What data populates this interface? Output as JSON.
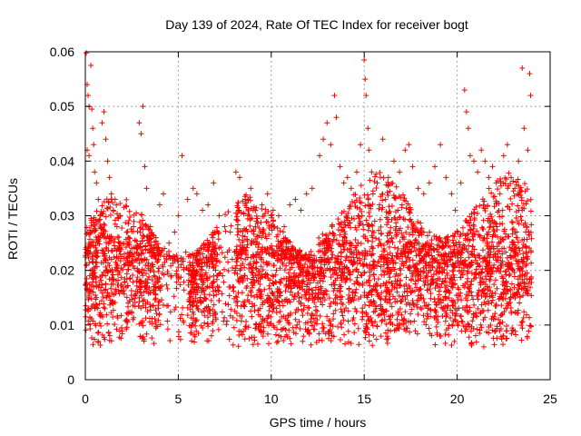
{
  "chart_data": {
    "type": "scatter",
    "title": "Day 139 of 2024, Rate Of TEC Index for receiver bogt",
    "xlabel": "GPS time / hours",
    "ylabel": "ROTI / TECUs",
    "xlim": [
      0,
      25
    ],
    "ylim": [
      0,
      0.06
    ],
    "xticks": [
      "0",
      "5",
      "10",
      "15",
      "20",
      "25"
    ],
    "yticks": [
      "0",
      "0.01",
      "0.02",
      "0.03",
      "0.04",
      "0.05",
      "0.06"
    ],
    "grid": true,
    "marker": "+",
    "color": "#ff0000",
    "series": [
      {
        "points": [
          [
            0.05,
            0.0598
          ],
          [
            0.1,
            0.054
          ],
          [
            0.15,
            0.052
          ],
          [
            0.2,
            0.05
          ],
          [
            0.3,
            0.0575
          ],
          [
            0.35,
            0.0495
          ],
          [
            0.4,
            0.046
          ],
          [
            0.1,
            0.042
          ],
          [
            0.2,
            0.041
          ],
          [
            0.45,
            0.043
          ],
          [
            0.5,
            0.038
          ],
          [
            0.6,
            0.036
          ],
          [
            0.7,
            0.033
          ],
          [
            0.8,
            0.03
          ],
          [
            0.9,
            0.047
          ],
          [
            1.0,
            0.049
          ],
          [
            1.1,
            0.044
          ],
          [
            1.2,
            0.04
          ],
          [
            1.3,
            0.037
          ],
          [
            1.4,
            0.034
          ],
          [
            1.5,
            0.031
          ],
          [
            1.6,
            0.033
          ],
          [
            1.7,
            0.028
          ],
          [
            1.9,
            0.025
          ],
          [
            2.1,
            0.023
          ],
          [
            2.3,
            0.026
          ],
          [
            2.5,
            0.024
          ],
          [
            2.9,
            0.047
          ],
          [
            3.0,
            0.045
          ],
          [
            3.1,
            0.05
          ],
          [
            3.2,
            0.039
          ],
          [
            3.3,
            0.035
          ],
          [
            3.5,
            0.028
          ],
          [
            3.8,
            0.026
          ],
          [
            4.0,
            0.032
          ],
          [
            4.2,
            0.034
          ],
          [
            4.5,
            0.025
          ],
          [
            4.8,
            0.027
          ],
          [
            5.0,
            0.03
          ],
          [
            5.2,
            0.041
          ],
          [
            5.5,
            0.033
          ],
          [
            5.8,
            0.035
          ],
          [
            6.0,
            0.034
          ],
          [
            6.3,
            0.031
          ],
          [
            6.6,
            0.032
          ],
          [
            6.9,
            0.036
          ],
          [
            7.2,
            0.03
          ],
          [
            7.5,
            0.028
          ],
          [
            7.8,
            0.027
          ],
          [
            8.1,
            0.038
          ],
          [
            8.3,
            0.037
          ],
          [
            8.6,
            0.033
          ],
          [
            8.9,
            0.035
          ],
          [
            9.2,
            0.029
          ],
          [
            9.5,
            0.032
          ],
          [
            9.8,
            0.034
          ],
          [
            10.1,
            0.031
          ],
          [
            10.4,
            0.03
          ],
          [
            10.7,
            0.028
          ],
          [
            11.0,
            0.032
          ],
          [
            11.3,
            0.033
          ],
          [
            11.6,
            0.031
          ],
          [
            11.9,
            0.034
          ],
          [
            12.2,
            0.035
          ],
          [
            12.6,
            0.041
          ],
          [
            12.8,
            0.044
          ],
          [
            13.0,
            0.047
          ],
          [
            13.2,
            0.043
          ],
          [
            13.4,
            0.052
          ],
          [
            13.5,
            0.048
          ],
          [
            13.7,
            0.039
          ],
          [
            13.9,
            0.036
          ],
          [
            14.1,
            0.037
          ],
          [
            14.3,
            0.035
          ],
          [
            14.6,
            0.038
          ],
          [
            14.8,
            0.043
          ],
          [
            15.0,
            0.0585
          ],
          [
            15.05,
            0.055
          ],
          [
            15.1,
            0.052
          ],
          [
            15.2,
            0.046
          ],
          [
            15.25,
            0.042
          ],
          [
            15.4,
            0.038
          ],
          [
            15.7,
            0.036
          ],
          [
            16.0,
            0.044
          ],
          [
            16.3,
            0.037
          ],
          [
            16.6,
            0.04
          ],
          [
            16.9,
            0.038
          ],
          [
            17.2,
            0.042
          ],
          [
            17.4,
            0.043
          ],
          [
            17.6,
            0.039
          ],
          [
            17.9,
            0.035
          ],
          [
            18.2,
            0.034
          ],
          [
            18.5,
            0.036
          ],
          [
            18.8,
            0.039
          ],
          [
            19.1,
            0.043
          ],
          [
            19.4,
            0.037
          ],
          [
            19.7,
            0.034
          ],
          [
            19.9,
            0.031
          ],
          [
            20.2,
            0.036
          ],
          [
            20.4,
            0.053
          ],
          [
            20.5,
            0.049
          ],
          [
            20.6,
            0.046
          ],
          [
            20.7,
            0.041
          ],
          [
            20.9,
            0.04
          ],
          [
            21.1,
            0.038
          ],
          [
            21.3,
            0.042
          ],
          [
            21.5,
            0.04
          ],
          [
            21.7,
            0.037
          ],
          [
            21.9,
            0.039
          ],
          [
            22.1,
            0.036
          ],
          [
            22.3,
            0.034
          ],
          [
            22.5,
            0.041
          ],
          [
            22.7,
            0.043
          ],
          [
            22.9,
            0.037
          ],
          [
            23.1,
            0.035
          ],
          [
            23.3,
            0.04
          ],
          [
            23.5,
            0.057
          ],
          [
            23.6,
            0.046
          ],
          [
            23.8,
            0.042
          ],
          [
            23.9,
            0.056
          ],
          [
            23.95,
            0.052
          ]
        ]
      }
    ]
  }
}
